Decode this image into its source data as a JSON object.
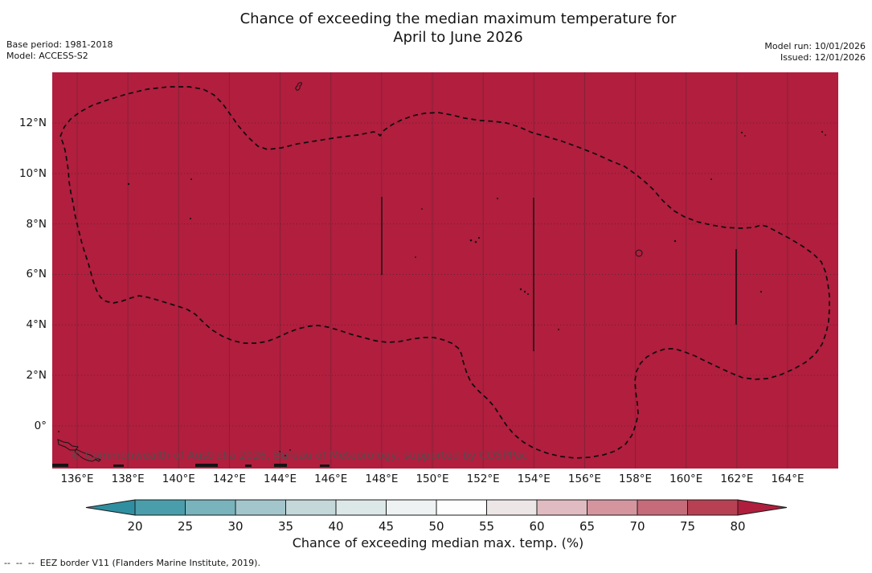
{
  "title": {
    "line1": "Chance of exceeding the median maximum temperature for",
    "line2": "April to June 2026"
  },
  "meta_left": {
    "base_period": "Base period: 1981-2018",
    "model": "Model: ACCESS-S2"
  },
  "meta_right": {
    "model_run": "Model run: 10/01/2026",
    "issued": "Issued: 12/01/2026"
  },
  "map": {
    "fill_color": "#b11e3e",
    "watermark": "© Commonwealth of Australia 2026, Bureau of Meteorology, supported by COSPPac",
    "y_ticks": [
      "12°N",
      "10°N",
      "8°N",
      "6°N",
      "4°N",
      "2°N",
      "0°"
    ],
    "x_ticks": [
      "136°E",
      "138°E",
      "140°E",
      "142°E",
      "144°E",
      "146°E",
      "148°E",
      "150°E",
      "152°E",
      "154°E",
      "156°E",
      "158°E",
      "160°E",
      "162°E",
      "164°E"
    ]
  },
  "colorbar": {
    "ticks": [
      "20",
      "25",
      "30",
      "35",
      "40",
      "45",
      "50",
      "55",
      "60",
      "65",
      "70",
      "75",
      "80"
    ],
    "segment_colors": [
      "#4a9dab",
      "#79b3bc",
      "#a2c6cb",
      "#c4d7d9",
      "#dce7e8",
      "#eef2f2",
      "#fefefe",
      "#ede6e7",
      "#e0bcc2",
      "#d4959f",
      "#c66b79",
      "#b84053"
    ],
    "under_color": "#2f8fa0",
    "over_color": "#b01e3e",
    "label": "Chance of exceeding median max. temp. (%)"
  },
  "footnote": "--  --  --  EEZ border V11 (Flanders Marine Institute, 2019).",
  "chart_data": {
    "type": "heatmap",
    "title": "Chance of exceeding the median maximum temperature for April to June 2026",
    "base_period": "1981-2018",
    "model": "ACCESS-S2",
    "model_run": "10/01/2026",
    "issued": "12/01/2026",
    "x_axis": {
      "ticks_deg_e": [
        136,
        138,
        140,
        142,
        144,
        146,
        148,
        150,
        152,
        154,
        156,
        158,
        160,
        162,
        164
      ],
      "range_deg_e": [
        135,
        166
      ]
    },
    "y_axis": {
      "ticks_deg_n": [
        12,
        10,
        8,
        6,
        4,
        2,
        0
      ],
      "range_deg_n": [
        -1.7,
        14.1
      ]
    },
    "value_label": "Chance of exceeding median max. temp. (%)",
    "colorbar_ticks_percent": [
      20,
      25,
      30,
      35,
      40,
      45,
      50,
      55,
      60,
      65,
      70,
      75,
      80
    ],
    "field": "Uniform value above 80% (dark crimson) across the entire mapped region",
    "overlays": [
      "Dashed EEZ border outline",
      "Straight sub-boundary lines near 148E (6-9N), 154E (3-9N), 162E (4-7N)",
      "Small island coastlines (Guam, Yap, Chuuk, Pohnpei, PNG islands)"
    ]
  }
}
